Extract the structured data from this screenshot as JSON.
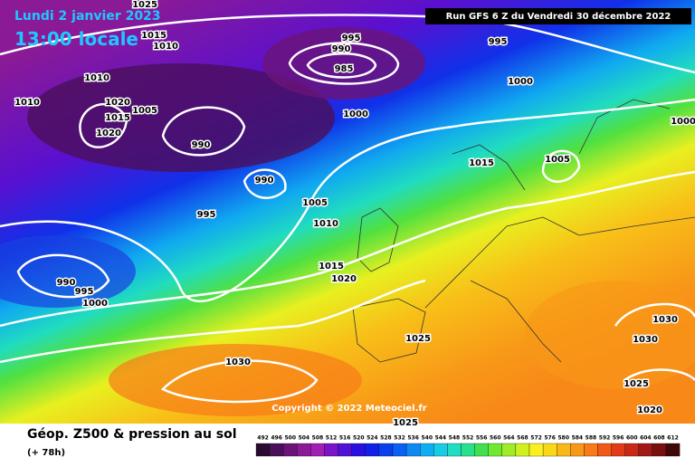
{
  "header": {
    "date": "Lundi 2 janvier 2023",
    "time": "13:00 locale",
    "run": "Run GFS 6 Z du Vendredi 30 décembre 2022"
  },
  "copyright": "Copyright © 2022 Meteociel.fr",
  "footer": {
    "title": "Géop. Z500 & pression au sol",
    "lead": "(+ 78h)"
  },
  "isobar_labels": [
    1025,
    1015,
    1010,
    995,
    990,
    985,
    995,
    1000,
    1010,
    1010,
    1020,
    1015,
    1005,
    1020,
    990,
    1000,
    1000,
    1015,
    1005,
    990,
    995,
    1005,
    1010,
    1015,
    1020,
    990,
    995,
    1000,
    1030,
    1030,
    1025,
    1030,
    1025,
    1020,
    1025
  ],
  "colorbar": {
    "ticks": [
      492,
      496,
      500,
      504,
      508,
      512,
      516,
      520,
      524,
      528,
      532,
      536,
      540,
      544,
      548,
      552,
      556,
      560,
      564,
      568,
      572,
      576,
      580,
      584,
      588,
      592,
      596,
      600,
      604,
      608,
      612
    ],
    "colors": [
      "#2a0a33",
      "#4a0f5a",
      "#6a1478",
      "#8a1a96",
      "#a020b4",
      "#7a14c8",
      "#5010d8",
      "#2a10e0",
      "#1020e6",
      "#0a40ec",
      "#0a60f2",
      "#1088f2",
      "#10aef0",
      "#18cce6",
      "#20dcc0",
      "#28e08c",
      "#40e050",
      "#6ee830",
      "#a0ec28",
      "#d0f020",
      "#f8f020",
      "#f8d818",
      "#f8b818",
      "#f89818",
      "#f87a18",
      "#f05a18",
      "#e03c18",
      "#c82818",
      "#a01818",
      "#781010",
      "#400808"
    ]
  }
}
